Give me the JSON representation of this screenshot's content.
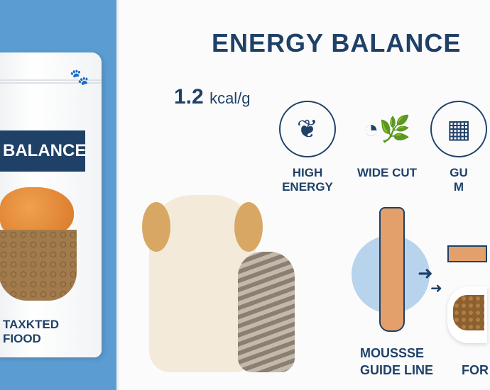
{
  "package": {
    "paw_icon": "paw-icon",
    "band_label": "BALANCE",
    "bottom_text": [
      "TAXKTED",
      "FIOOD"
    ]
  },
  "header": {
    "title": "ENERGY BALANCE",
    "energy_value": "1.2",
    "energy_unit": "kcal/g"
  },
  "features": [
    {
      "icon": "leaf-sprout-icon",
      "label": "HIGH ENERGY"
    },
    {
      "icon": "drop-leaf-icon",
      "label": "WIDE CUT"
    },
    {
      "icon": "food-icon",
      "label": "GU",
      "label_line2": "M"
    }
  ],
  "diagram": {
    "tube_label": [
      "MOUSSSE",
      "GUIDE LINE"
    ],
    "bowl_label": "FOR"
  },
  "colors": {
    "brand_navy": "#1f4168",
    "side_blue": "#5b9dd2",
    "mousse": "#e4a06a"
  }
}
